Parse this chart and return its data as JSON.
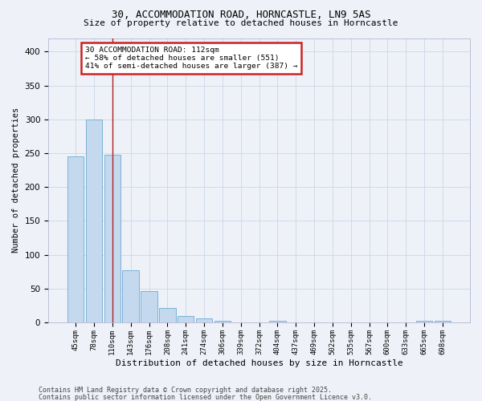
{
  "title1": "30, ACCOMMODATION ROAD, HORNCASTLE, LN9 5AS",
  "title2": "Size of property relative to detached houses in Horncastle",
  "xlabel": "Distribution of detached houses by size in Horncastle",
  "ylabel": "Number of detached properties",
  "categories": [
    "45sqm",
    "78sqm",
    "110sqm",
    "143sqm",
    "176sqm",
    "208sqm",
    "241sqm",
    "274sqm",
    "306sqm",
    "339sqm",
    "372sqm",
    "404sqm",
    "437sqm",
    "469sqm",
    "502sqm",
    "535sqm",
    "567sqm",
    "600sqm",
    "633sqm",
    "665sqm",
    "698sqm"
  ],
  "values": [
    245,
    300,
    248,
    77,
    46,
    21,
    9,
    6,
    3,
    0,
    0,
    3,
    0,
    0,
    0,
    0,
    0,
    0,
    0,
    2,
    3
  ],
  "bar_color": "#c5d9ee",
  "bar_edge_color": "#6aaad4",
  "grid_color": "#ccd6e8",
  "vline_x_index": 2,
  "vline_color": "#aa2222",
  "annotation_text": "30 ACCOMMODATION ROAD: 112sqm\n← 58% of detached houses are smaller (551)\n41% of semi-detached houses are larger (387) →",
  "annotation_box_color": "#cc2222",
  "annotation_bg": "#ffffff",
  "ylim": [
    0,
    420
  ],
  "yticks": [
    0,
    50,
    100,
    150,
    200,
    250,
    300,
    350,
    400
  ],
  "footnote1": "Contains HM Land Registry data © Crown copyright and database right 2025.",
  "footnote2": "Contains public sector information licensed under the Open Government Licence v3.0.",
  "bg_color": "#eef2f8",
  "plot_bg_color": "#eef2f8"
}
